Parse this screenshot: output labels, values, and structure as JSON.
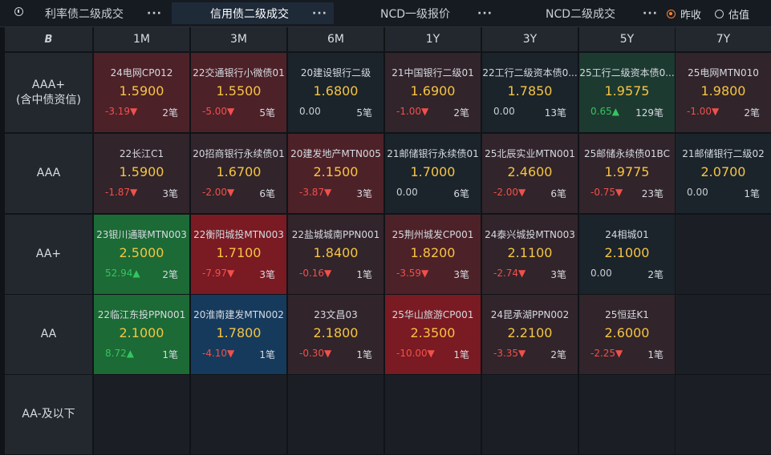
{
  "tabs": [
    {
      "label": "利率债二级成交",
      "active": false
    },
    {
      "label": "信用债二级成交",
      "active": true
    },
    {
      "label": "NCD一级报价",
      "active": false
    },
    {
      "label": "NCD二级成交",
      "active": false
    }
  ],
  "radios": [
    {
      "label": "昨收",
      "checked": true
    },
    {
      "label": "估值",
      "checked": false
    }
  ],
  "corner_icon": "B",
  "columns": [
    "1M",
    "3M",
    "6M",
    "1Y",
    "3Y",
    "5Y",
    "7Y"
  ],
  "rows": [
    {
      "label": "AAA+",
      "sublabel": "(含中债资信)"
    },
    {
      "label": "AAA",
      "sublabel": ""
    },
    {
      "label": "AA+",
      "sublabel": ""
    },
    {
      "label": "AA",
      "sublabel": ""
    },
    {
      "label": "AA-及以下",
      "sublabel": ""
    }
  ],
  "colors": {
    "neg_deep": "#7a1a22",
    "neg_mid": "#4d2128",
    "neg_light": "#31242a",
    "pos_deep": "#1c6a35",
    "pos_light": "#1d3a30",
    "neutral": "#1b232b",
    "blue": "#163a5c",
    "empty": "#1b1f25"
  },
  "cells": [
    [
      {
        "name": "24电网CP012",
        "price": "1.5900",
        "change": "-3.19▼",
        "count": "2笔",
        "dir": "neg",
        "bg": "neg_mid"
      },
      {
        "name": "22交通银行小微债01",
        "price": "1.5500",
        "change": "-5.00▼",
        "count": "5笔",
        "dir": "neg",
        "bg": "neg_mid"
      },
      {
        "name": "20建设银行二级",
        "price": "1.6800",
        "change": "0.00",
        "count": "5笔",
        "dir": "zero",
        "bg": "neutral"
      },
      {
        "name": "21中国银行二级01",
        "price": "1.6900",
        "change": "-1.00▼",
        "count": "2笔",
        "dir": "neg",
        "bg": "neg_light"
      },
      {
        "name": "22工行二级资本债0...",
        "price": "1.7850",
        "change": "0.00",
        "count": "13笔",
        "dir": "zero",
        "bg": "neutral"
      },
      {
        "name": "25工行二级资本债0...",
        "price": "1.9575",
        "change": "0.65▲",
        "count": "129笔",
        "dir": "pos",
        "bg": "pos_light"
      },
      {
        "name": "25电网MTN010",
        "price": "1.9800",
        "change": "-1.00▼",
        "count": "2笔",
        "dir": "neg",
        "bg": "neg_light"
      }
    ],
    [
      {
        "name": "22长江C1",
        "price": "1.5900",
        "change": "-1.87▼",
        "count": "3笔",
        "dir": "neg",
        "bg": "neg_light"
      },
      {
        "name": "20招商银行永续债01",
        "price": "1.6700",
        "change": "-2.00▼",
        "count": "6笔",
        "dir": "neg",
        "bg": "neg_light"
      },
      {
        "name": "20建发地产MTN005",
        "price": "2.1500",
        "change": "-3.87▼",
        "count": "3笔",
        "dir": "neg",
        "bg": "neg_mid"
      },
      {
        "name": "21邮储银行永续债01",
        "price": "1.7000",
        "change": "0.00",
        "count": "6笔",
        "dir": "zero",
        "bg": "neutral"
      },
      {
        "name": "25北辰实业MTN001",
        "price": "2.4600",
        "change": "-2.00▼",
        "count": "6笔",
        "dir": "neg",
        "bg": "neg_light"
      },
      {
        "name": "25邮储永续债01BC",
        "price": "1.9775",
        "change": "-0.75▼",
        "count": "23笔",
        "dir": "neg",
        "bg": "neg_light"
      },
      {
        "name": "21邮储银行二级02",
        "price": "2.0700",
        "change": "0.00",
        "count": "1笔",
        "dir": "zero",
        "bg": "neutral"
      }
    ],
    [
      {
        "name": "23银川通联MTN003",
        "price": "2.5000",
        "change": "52.94▲",
        "count": "2笔",
        "dir": "pos",
        "bg": "pos_deep"
      },
      {
        "name": "22衡阳城投MTN003",
        "price": "1.7100",
        "change": "-7.97▼",
        "count": "3笔",
        "dir": "neg",
        "bg": "neg_deep"
      },
      {
        "name": "22盐城城南PPN001",
        "price": "1.8400",
        "change": "-0.16▼",
        "count": "1笔",
        "dir": "neg",
        "bg": "neg_light"
      },
      {
        "name": "25荆州城发CP001",
        "price": "1.8200",
        "change": "-3.59▼",
        "count": "3笔",
        "dir": "neg",
        "bg": "neg_mid"
      },
      {
        "name": "24泰兴城投MTN003",
        "price": "2.1100",
        "change": "-2.74▼",
        "count": "3笔",
        "dir": "neg",
        "bg": "neg_light"
      },
      {
        "name": "24相城01",
        "price": "2.1000",
        "change": "0.00",
        "count": "2笔",
        "dir": "zero",
        "bg": "neutral"
      },
      null
    ],
    [
      {
        "name": "22临江东投PPN001",
        "price": "2.1000",
        "change": "8.72▲",
        "count": "1笔",
        "dir": "pos",
        "bg": "pos_deep"
      },
      {
        "name": "20淮南建发MTN002",
        "price": "1.7800",
        "change": "-4.10▼",
        "count": "1笔",
        "dir": "neg",
        "bg": "blue"
      },
      {
        "name": "23文昌03",
        "price": "2.1800",
        "change": "-0.30▼",
        "count": "1笔",
        "dir": "neg",
        "bg": "neg_light"
      },
      {
        "name": "25华山旅游CP001",
        "price": "2.3500",
        "change": "-10.00▼",
        "count": "1笔",
        "dir": "neg",
        "bg": "neg_deep"
      },
      {
        "name": "24昆承湖PPN002",
        "price": "2.2100",
        "change": "-3.35▼",
        "count": "2笔",
        "dir": "neg",
        "bg": "neg_light"
      },
      {
        "name": "25恒廷K1",
        "price": "2.6000",
        "change": "-2.25▼",
        "count": "1笔",
        "dir": "neg",
        "bg": "neg_light"
      },
      null
    ],
    [
      null,
      null,
      null,
      null,
      null,
      null,
      null
    ]
  ]
}
